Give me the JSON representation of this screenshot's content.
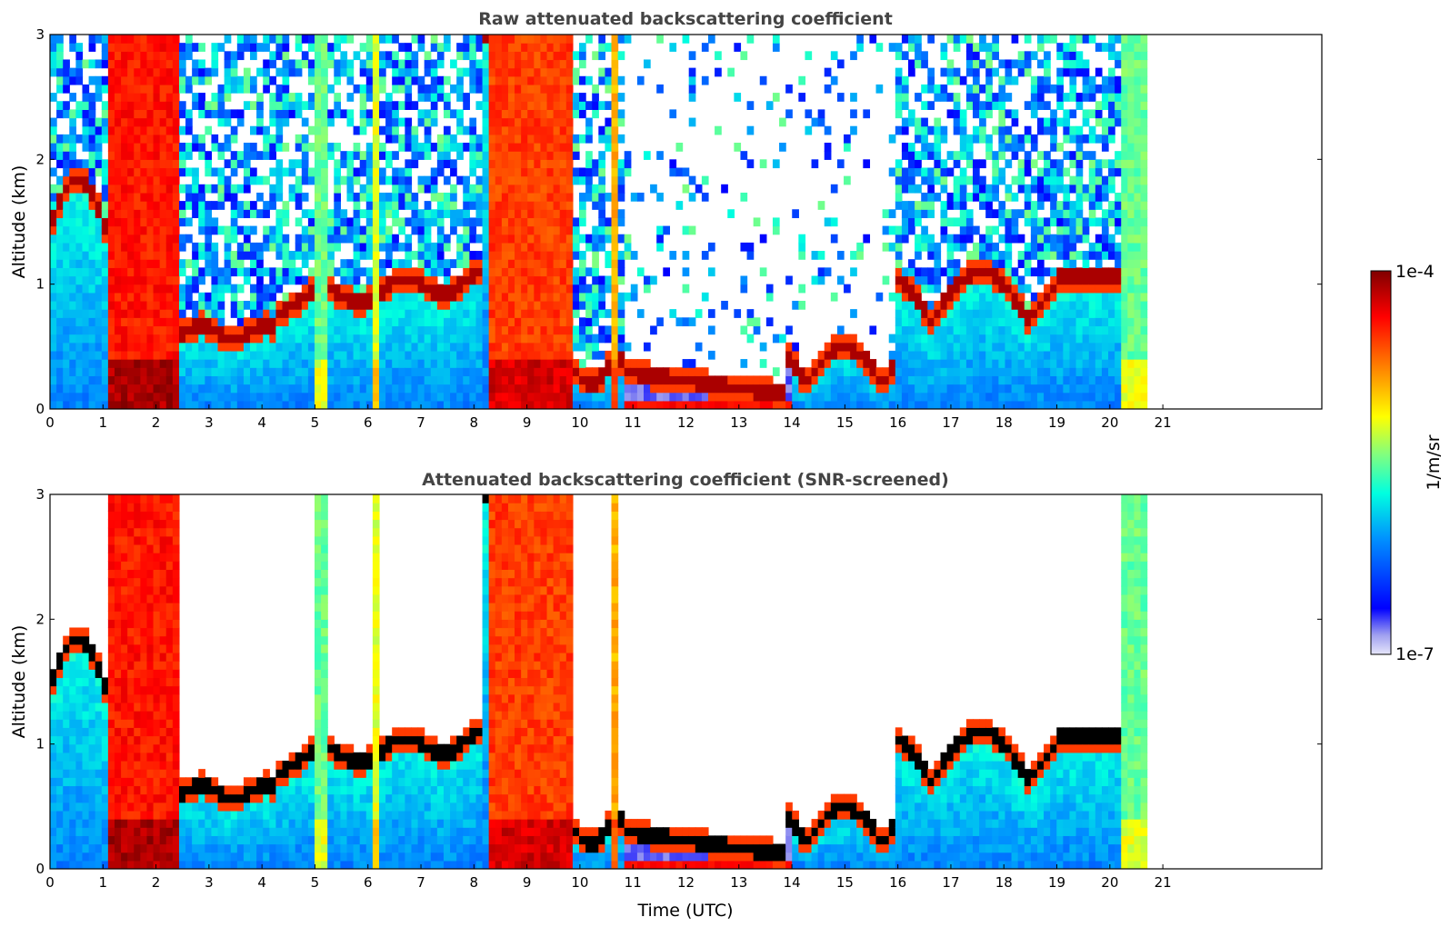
{
  "chart_data": [
    {
      "type": "heatmap",
      "title": "Raw attenuated backscattering coefficient",
      "xlabel": "",
      "ylabel": "Altitude (km)",
      "xlim": [
        0,
        24
      ],
      "ylim": [
        0,
        3
      ],
      "x_ticks": [
        0,
        1,
        2,
        3,
        4,
        5,
        6,
        7,
        8,
        9,
        10,
        11,
        12,
        13,
        14,
        15,
        16,
        17,
        18,
        19,
        20,
        21
      ],
      "y_ticks": [
        0,
        1,
        2,
        3
      ],
      "data_extent_x": [
        0,
        20.7
      ],
      "features": {
        "dense_columns": [
          {
            "x": [
              1.15,
              2.4
            ],
            "y_top": 3
          },
          {
            "x": [
              8.3,
              9.9
            ],
            "y_top": 3
          },
          {
            "x": [
              20.2,
              20.7
            ],
            "y_top": 3
          }
        ],
        "cloud_layers": [
          {
            "x": [
              0.1,
              1.2
            ],
            "y": [
              1.3,
              2.0
            ]
          },
          {
            "x": [
              2.4,
              4.3
            ],
            "y": [
              0.55,
              0.75
            ]
          },
          {
            "x": [
              4.3,
              8.2
            ],
            "y": [
              0.9,
              1.3
            ]
          },
          {
            "x": [
              10.9,
              13.9
            ],
            "y": [
              0.1,
              0.3
            ]
          },
          {
            "x": [
              14.0,
              15.8
            ],
            "y": [
              0.1,
              0.8
            ]
          },
          {
            "x": [
              16.5,
              18.9
            ],
            "y": [
              0.4,
              1.3
            ]
          }
        ]
      },
      "grid": false,
      "colorscale": "jet"
    },
    {
      "type": "heatmap",
      "title": "Attenuated backscattering coefficient (SNR-screened)",
      "xlabel": "Time (UTC)",
      "ylabel": "Altitude (km)",
      "xlim": [
        0,
        24
      ],
      "ylim": [
        0,
        3
      ],
      "x_ticks": [
        0,
        1,
        2,
        3,
        4,
        5,
        6,
        7,
        8,
        9,
        10,
        11,
        12,
        13,
        14,
        15,
        16,
        17,
        18,
        19,
        20,
        21
      ],
      "y_ticks": [
        0,
        1,
        2,
        3
      ],
      "data_extent_x": [
        0,
        20.7
      ],
      "grid": false,
      "colorscale": "jet"
    }
  ],
  "colorbar": {
    "label": "1/m/sr",
    "max_label": "1e-4",
    "min_label": "1e-7",
    "range": [
      1e-07,
      0.0001
    ],
    "scale": "log",
    "colors": [
      "#e6e6fa",
      "#0000ff",
      "#00a0ff",
      "#00ffe0",
      "#80ff80",
      "#ffff00",
      "#ff8000",
      "#ff0000",
      "#800000"
    ]
  }
}
